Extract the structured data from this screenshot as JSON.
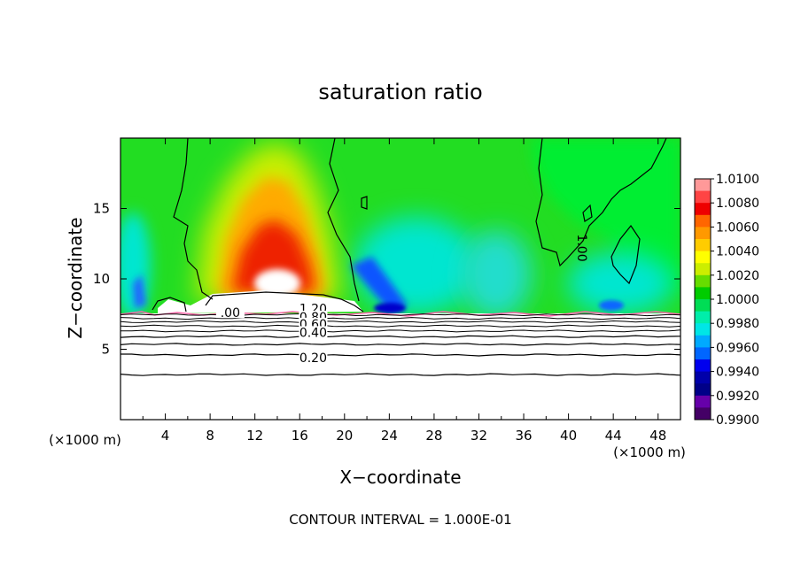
{
  "chart_data": {
    "type": "heatmap",
    "title": "saturation ratio",
    "xlabel": "X−coordinate",
    "ylabel": "Z−coordinate",
    "x_unit_left": "(×1000 m)",
    "x_unit_right": "(×1000 m)",
    "footer": "CONTOUR INTERVAL = 1.000E-01",
    "xlim": [
      0,
      50
    ],
    "ylim": [
      0,
      20
    ],
    "x_ticks": [
      4,
      8,
      12,
      16,
      20,
      24,
      28,
      32,
      36,
      40,
      44,
      48
    ],
    "y_ticks": [
      5,
      10,
      15
    ],
    "colorbar": {
      "labels": [
        "1.0100",
        "1.0080",
        "1.0060",
        "1.0040",
        "1.0020",
        "1.0000",
        "0.9980",
        "0.9960",
        "0.9940",
        "0.9920",
        "0.9900"
      ],
      "colors": [
        "#ff9999",
        "#ff4444",
        "#ee0000",
        "#ff6600",
        "#ff9900",
        "#ffcc00",
        "#ffff00",
        "#ccee00",
        "#66dd00",
        "#00cc00",
        "#00dd55",
        "#00eeaa",
        "#00e6e6",
        "#00aaff",
        "#0066ff",
        "#0000ee",
        "#0000aa",
        "#000088",
        "#6600aa",
        "#440066"
      ]
    },
    "contour_labels": [
      {
        "text": "1.00",
        "x": 41.2,
        "z": 12.2,
        "rot": 90
      },
      {
        "text": ".00",
        "x": 9.8,
        "z": 7.6
      },
      {
        "text": "1.20",
        "x": 17.2,
        "z": 7.9
      },
      {
        "text": "0.80",
        "x": 17.2,
        "z": 7.3
      },
      {
        "text": "0.60",
        "x": 17.2,
        "z": 6.8
      },
      {
        "text": "0.40",
        "x": 17.2,
        "z": 6.2
      },
      {
        "text": "0.20",
        "x": 17.2,
        "z": 4.4
      }
    ],
    "stable_layer_levels_z": [
      7.45,
      7.2,
      6.95,
      6.65,
      6.3,
      5.9,
      5.35,
      4.6,
      3.2
    ]
  }
}
